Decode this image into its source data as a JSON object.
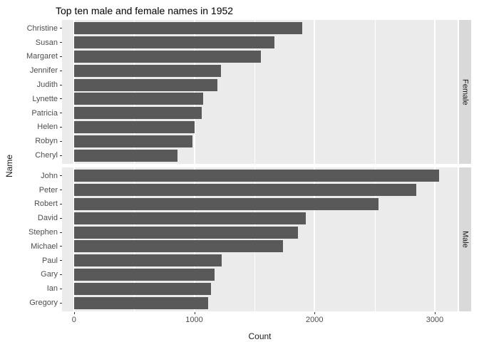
{
  "title": "Top ten male and female names in 1952",
  "ylabel": "Name",
  "xlabel": "Count",
  "chart_data": {
    "type": "bar",
    "orientation": "horizontal",
    "title": "Top ten male and female names in 1952",
    "xlabel": "Count",
    "ylabel": "Name",
    "xlim": [
      -100,
      3190
    ],
    "grid": true,
    "facets": [
      {
        "label": "Female",
        "categories": [
          "Christine",
          "Susan",
          "Margaret",
          "Jennifer",
          "Judith",
          "Lynette",
          "Patricia",
          "Helen",
          "Robyn",
          "Cheryl"
        ],
        "values": [
          1900,
          1665,
          1555,
          1220,
          1195,
          1075,
          1060,
          1000,
          985,
          860
        ]
      },
      {
        "label": "Male",
        "categories": [
          "John",
          "Peter",
          "Robert",
          "David",
          "Stephen",
          "Michael",
          "Paul",
          "Gary",
          "Ian",
          "Gregory"
        ],
        "values": [
          3035,
          2845,
          2535,
          1925,
          1865,
          1740,
          1230,
          1170,
          1140,
          1115
        ]
      }
    ],
    "x_ticks": [
      {
        "label": "0",
        "value": 0
      },
      {
        "label": "1000",
        "value": 1000
      },
      {
        "label": "2000",
        "value": 2000
      },
      {
        "label": "3000",
        "value": 3000
      }
    ],
    "x_minor_ticks": [
      500,
      1500,
      2500
    ],
    "colors": {
      "bar": "#595959",
      "panel_bg": "#ebebeb",
      "strip_bg": "#d9d9d9",
      "grid": "#ffffff",
      "axis_text": "#4d4d4d",
      "title_text": "#000000"
    }
  }
}
